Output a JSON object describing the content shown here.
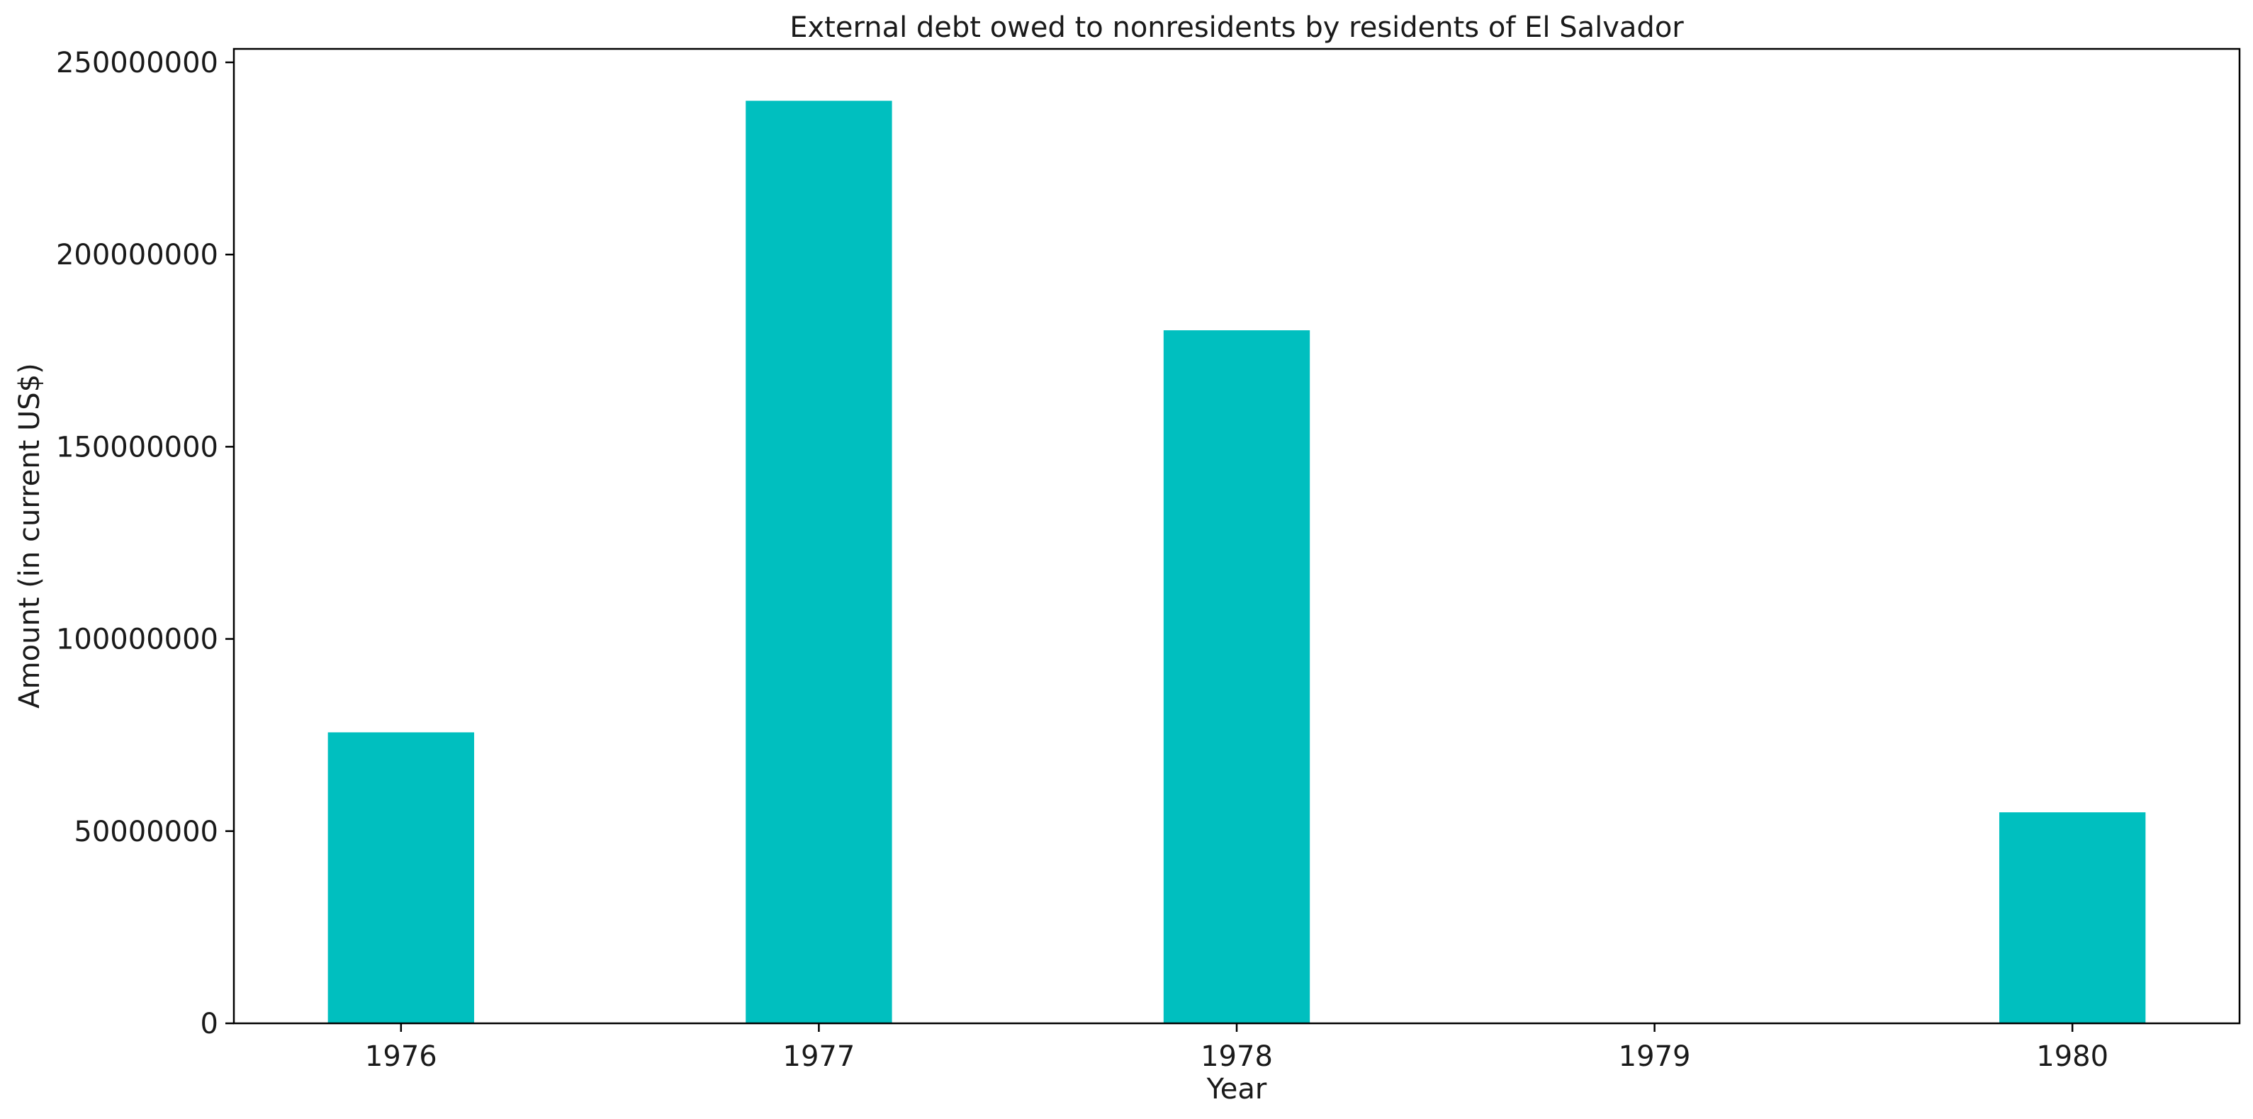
{
  "chart_data": {
    "type": "bar",
    "title": "External debt owed to nonresidents by residents of El Salvador",
    "xlabel": "Year",
    "ylabel": "Amount (in current US$)",
    "categories": [
      "1976",
      "1977",
      "1978",
      "1979",
      "1980"
    ],
    "values": [
      75700000,
      240000000,
      180300000,
      0,
      54900000
    ],
    "ylim": [
      0,
      253500000
    ],
    "yticks": [
      0,
      50000000,
      100000000,
      150000000,
      200000000,
      250000000
    ],
    "ytick_labels": [
      "0",
      "50000000",
      "100000000",
      "150000000",
      "200000000",
      "250000000"
    ],
    "grid": false,
    "bar_color": "#00bfbf"
  }
}
